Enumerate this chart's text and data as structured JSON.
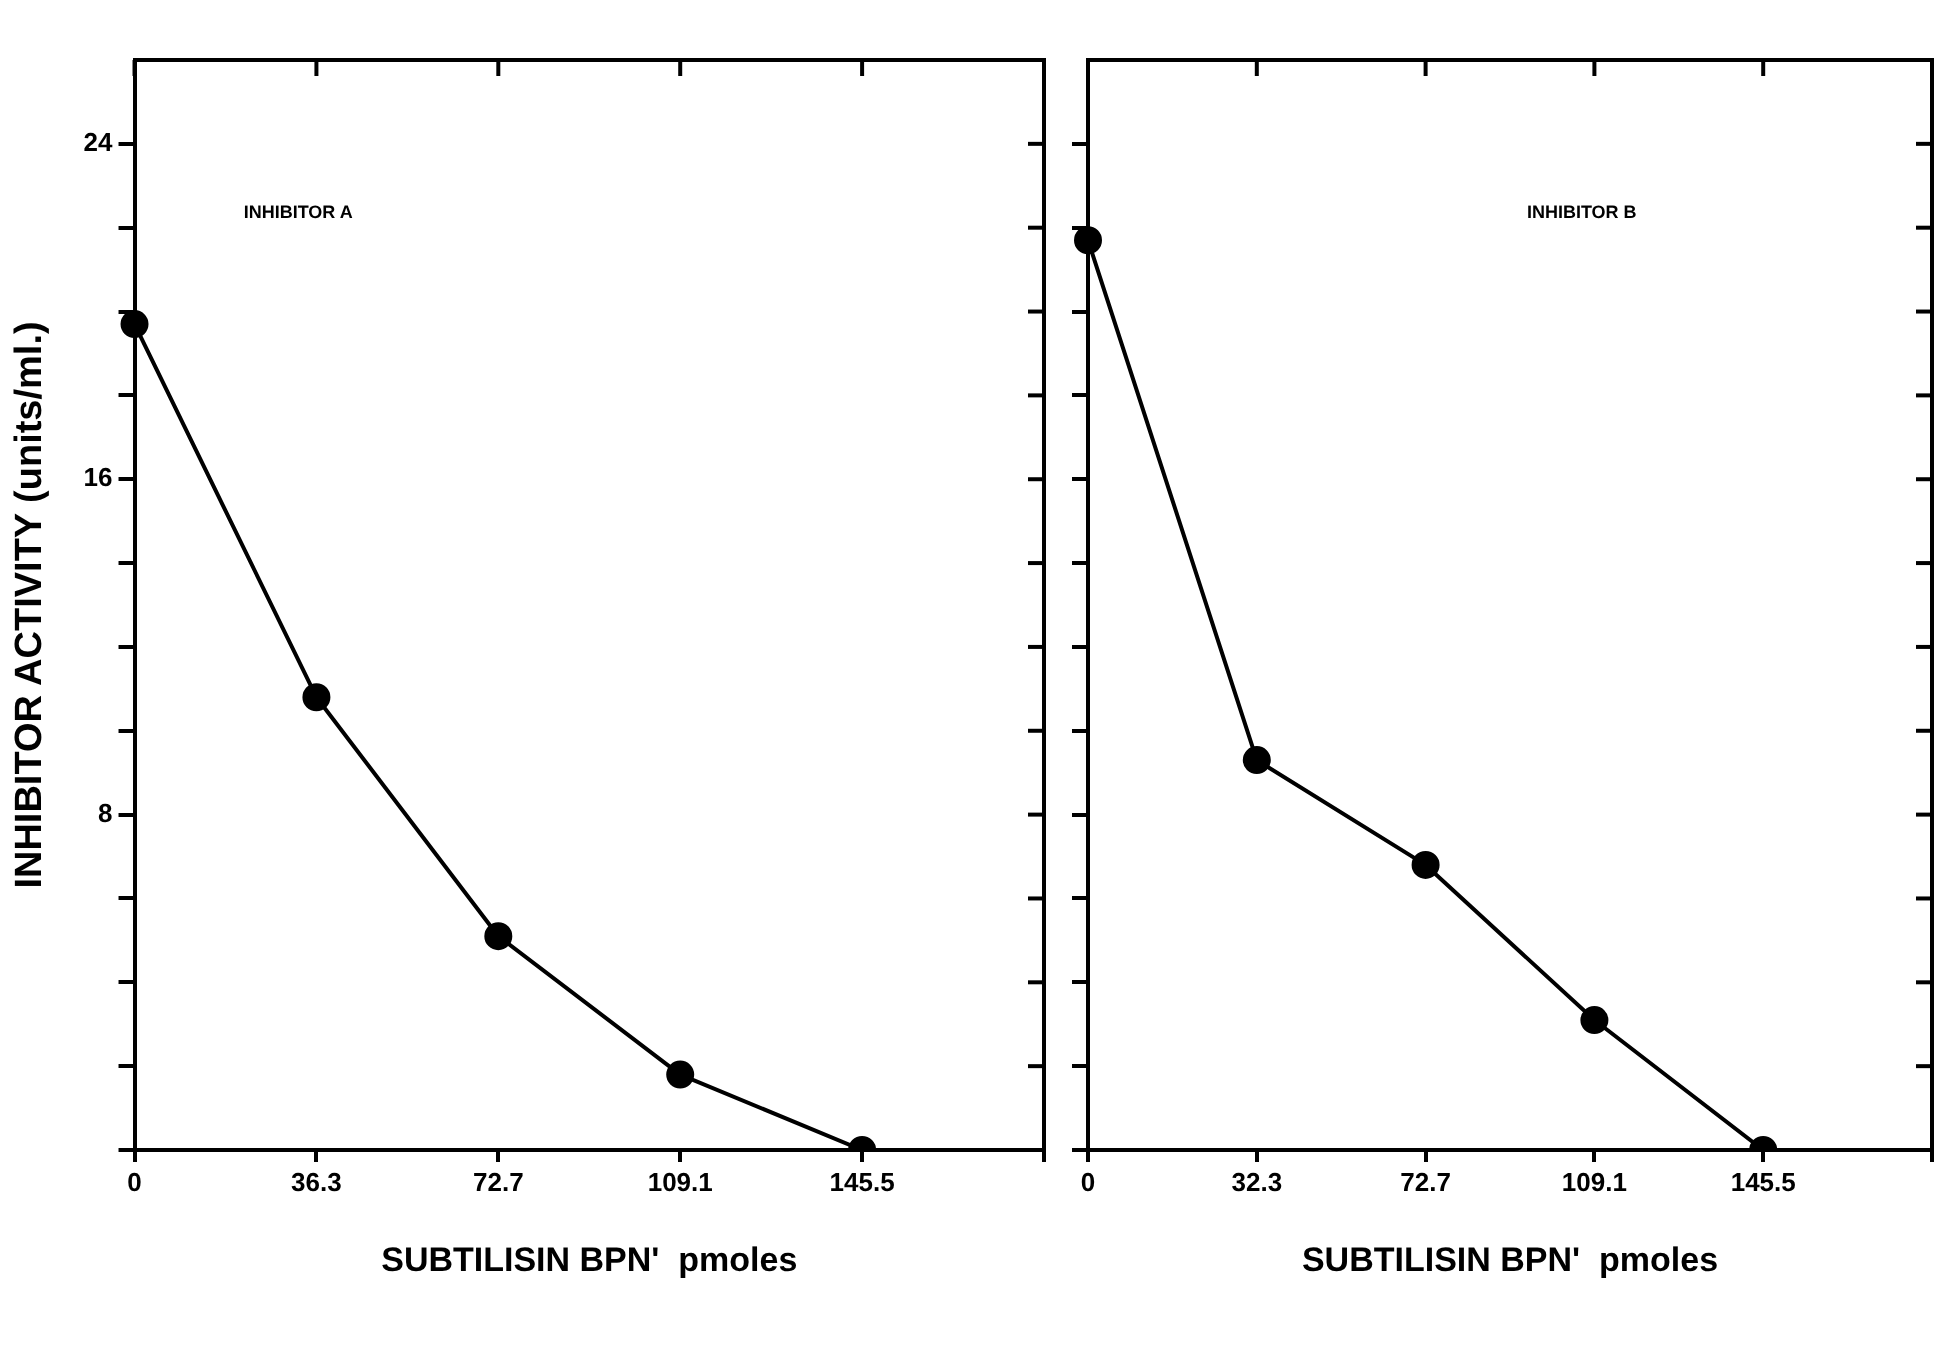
{
  "chart_data": [
    {
      "type": "line",
      "categories": [
        "0",
        "36.3",
        "72.7",
        "109.1",
        "145.5",
        null
      ],
      "series": [
        {
          "color": "#000000",
          "values": [
            19.7,
            10.8,
            5.1,
            1.8,
            0,
            null
          ]
        }
      ],
      "marker": "circle",
      "xlabel": "SUBTILISIN BPN'  pmoles",
      "ylabel": "INHIBITOR ACTIVITY (units/ml.)",
      "annotations": [
        "INHIBITOR A"
      ],
      "ylim": [
        0,
        26
      ],
      "yticks": [
        {
          "value": 0,
          "label": null
        },
        {
          "value": 2,
          "label": null
        },
        {
          "value": 4,
          "label": null
        },
        {
          "value": 6,
          "label": null
        },
        8,
        {
          "value": 10,
          "label": null
        },
        {
          "value": 12,
          "label": null
        },
        {
          "value": 14,
          "label": null
        },
        16,
        {
          "value": 18,
          "label": null
        },
        {
          "value": 20,
          "label": null
        },
        {
          "value": 22,
          "label": null
        },
        24
      ]
    },
    {
      "type": "line",
      "categories": [
        "0",
        "32.3",
        "72.7",
        "109.1",
        "145.5",
        null
      ],
      "series": [
        {
          "color": "#000000",
          "values": [
            21.7,
            9.3,
            6.8,
            3.1,
            0,
            null
          ]
        }
      ],
      "marker": "circle",
      "xlabel": "SUBTILISIN BPN'  pmoles",
      "annotations": [
        "INHIBITOR B"
      ],
      "ylim": [
        0,
        26
      ],
      "yticks": [
        {
          "value": 0,
          "label": null
        },
        {
          "value": 2,
          "label": null
        },
        {
          "value": 4,
          "label": null
        },
        {
          "value": 6,
          "label": null
        },
        {
          "value": 8,
          "label": null
        },
        {
          "value": 10,
          "label": null
        },
        {
          "value": 12,
          "label": null
        },
        {
          "value": 14,
          "label": null
        },
        {
          "value": 16,
          "label": null
        },
        {
          "value": 18,
          "label": null
        },
        {
          "value": 20,
          "label": null
        },
        {
          "value": 22,
          "label": null
        },
        {
          "value": 24,
          "label": null
        }
      ],
      "tick_labels": "x"
    }
  ]
}
